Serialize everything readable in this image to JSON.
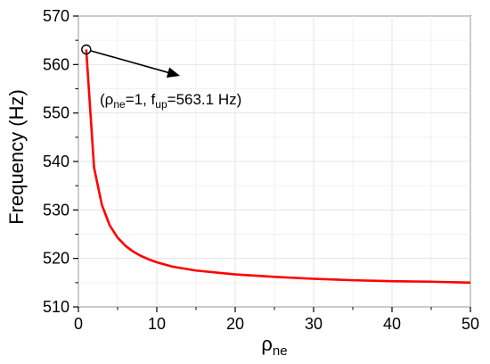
{
  "chart_data": {
    "type": "line",
    "xlabel_main": "ρ",
    "xlabel_sub": "ne",
    "ylabel": "Frequency (Hz)",
    "xlim": [
      0,
      50
    ],
    "ylim": [
      510,
      570
    ],
    "grid": true,
    "x_ticks": [
      0,
      10,
      20,
      30,
      40,
      50
    ],
    "y_ticks": [
      510,
      520,
      530,
      540,
      550,
      560,
      570
    ],
    "series": [
      {
        "color": "#ff0000",
        "x": [
          1,
          2,
          3,
          4,
          5,
          6,
          7,
          8,
          9,
          10,
          12,
          15,
          20,
          25,
          30,
          35,
          40,
          45,
          50
        ],
        "y": [
          563.1,
          538.7,
          531.0,
          526.8,
          524.3,
          522.6,
          521.4,
          520.5,
          519.8,
          519.2,
          518.3,
          517.5,
          516.7,
          516.2,
          515.8,
          515.5,
          515.3,
          515.2,
          515.0
        ]
      }
    ],
    "annotation": {
      "point": {
        "x": 1,
        "y": 563.1
      },
      "text_open": "(",
      "rho": "ρ",
      "rho_sub": "ne",
      "eq1": "=1, ",
      "f": "f",
      "f_sub": "up",
      "eq2": "=563.1 Hz)"
    }
  }
}
